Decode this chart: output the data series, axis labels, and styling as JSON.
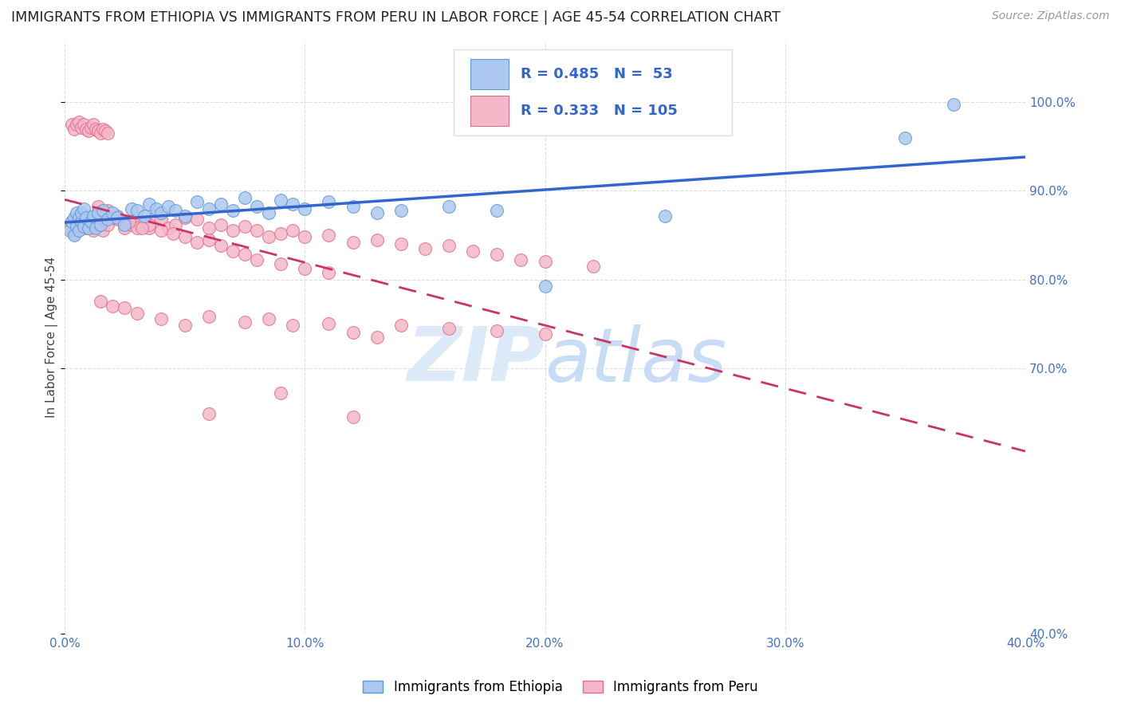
{
  "title": "IMMIGRANTS FROM ETHIOPIA VS IMMIGRANTS FROM PERU IN LABOR FORCE | AGE 45-54 CORRELATION CHART",
  "source": "Source: ZipAtlas.com",
  "ylabel": "In Labor Force | Age 45-54",
  "xlim": [
    0.0,
    0.4
  ],
  "ylim": [
    0.4,
    1.07
  ],
  "xtick_vals": [
    0.0,
    0.1,
    0.2,
    0.3,
    0.4
  ],
  "xtick_labels": [
    "0.0%",
    "10.0%",
    "20.0%",
    "30.0%",
    "40.0%"
  ],
  "ytick_vals": [
    0.4,
    0.7,
    0.8,
    0.9,
    1.0
  ],
  "ytick_labels": [
    "40.0%",
    "70.0%",
    "80.0%",
    "90.0%",
    "100.0%"
  ],
  "ethiopia_color": "#adc8f0",
  "ethiopia_edge": "#5b9bd5",
  "peru_color": "#f4b8c8",
  "peru_edge": "#e07090",
  "ethiopia_R": 0.485,
  "ethiopia_N": 53,
  "peru_R": 0.333,
  "peru_N": 105,
  "trendline_ethiopia_color": "#3366cc",
  "trendline_peru_color": "#cc3366",
  "watermark_zip": "ZIP",
  "watermark_atlas": "atlas",
  "watermark_color": "#dce9f8",
  "grid_color": "#dddddd"
}
